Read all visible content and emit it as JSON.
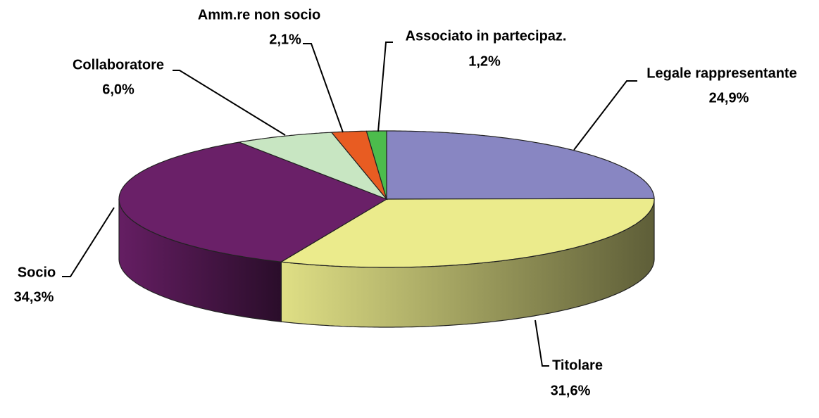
{
  "chart_data": {
    "type": "pie3d",
    "categories": [
      "Legale rappresentante",
      "Titolare",
      "Socio",
      "Collaboratore",
      "Amm.re non socio",
      "Associato in partecipaz."
    ],
    "values": [
      24.9,
      31.6,
      34.3,
      6.0,
      2.1,
      1.2
    ],
    "value_labels": [
      "24,9%",
      "31,6%",
      "34,3%",
      "6,0%",
      "2,1%",
      "1,2%"
    ],
    "colors": [
      "#8886c2",
      "#ebeb8c",
      "#6a2068",
      "#c8e6c2",
      "#e85c22",
      "#4cbc4c"
    ]
  }
}
